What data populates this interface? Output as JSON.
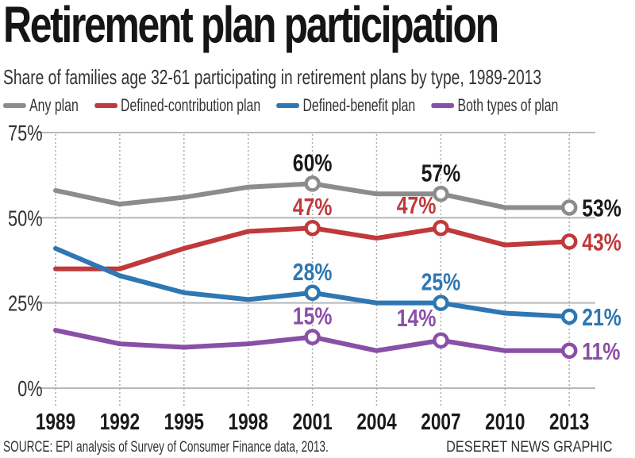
{
  "title": "Retirement plan participation",
  "subtitle": "Share of families age 32-61 participating in retirement plans by type, 1989-2013",
  "source": "SOURCE: EPI analysis of  Survey of Consumer Finance data, 2013.",
  "credit": "DESERET NEWS GRAPHIC",
  "chart_data": {
    "type": "line",
    "title": "Retirement plan participation",
    "subtitle": "Share of families age 32-61 participating in retirement plans by type, 1989-2013",
    "xlabel": "",
    "ylabel": "",
    "x": [
      "1989",
      "1992",
      "1995",
      "1998",
      "2001",
      "2004",
      "2007",
      "2010",
      "2013"
    ],
    "ylim": [
      0,
      75
    ],
    "yticks": [
      0,
      25,
      50,
      75
    ],
    "ytick_labels": [
      "0%",
      "25%",
      "50%",
      "75%"
    ],
    "grid": "horizontal solid at y ticks; vertical dotted at each x",
    "legend_position": "top",
    "series": [
      {
        "name": "Any plan",
        "color": "#8c8c8c",
        "label_color": "#1a1a1a",
        "values": [
          58,
          54,
          56,
          59,
          60,
          57,
          57,
          53,
          53
        ],
        "labeled_points": [
          {
            "x": "2001",
            "label": "60%"
          },
          {
            "x": "2007",
            "label": "57%"
          },
          {
            "x": "2013",
            "label": "53%"
          }
        ]
      },
      {
        "name": "Defined-contribution plan",
        "color": "#c0393b",
        "label_color": "#c0393b",
        "values": [
          35,
          35,
          41,
          46,
          47,
          44,
          47,
          42,
          43
        ],
        "labeled_points": [
          {
            "x": "2001",
            "label": "47%"
          },
          {
            "x": "2007",
            "label": "47%"
          },
          {
            "x": "2013",
            "label": "43%"
          }
        ]
      },
      {
        "name": "Defined-benefit plan",
        "color": "#2e77b3",
        "label_color": "#2e77b3",
        "values": [
          41,
          33,
          28,
          26,
          28,
          25,
          25,
          22,
          21
        ],
        "labeled_points": [
          {
            "x": "2001",
            "label": "28%"
          },
          {
            "x": "2007",
            "label": "25%"
          },
          {
            "x": "2013",
            "label": "21%"
          }
        ]
      },
      {
        "name": "Both types of plan",
        "color": "#8a4fa6",
        "label_color": "#8a4fa6",
        "values": [
          17,
          13,
          12,
          13,
          15,
          11,
          14,
          11,
          11
        ],
        "labeled_points": [
          {
            "x": "2001",
            "label": "15%"
          },
          {
            "x": "2007",
            "label": "14%"
          },
          {
            "x": "2013",
            "label": "11%"
          }
        ]
      }
    ]
  }
}
